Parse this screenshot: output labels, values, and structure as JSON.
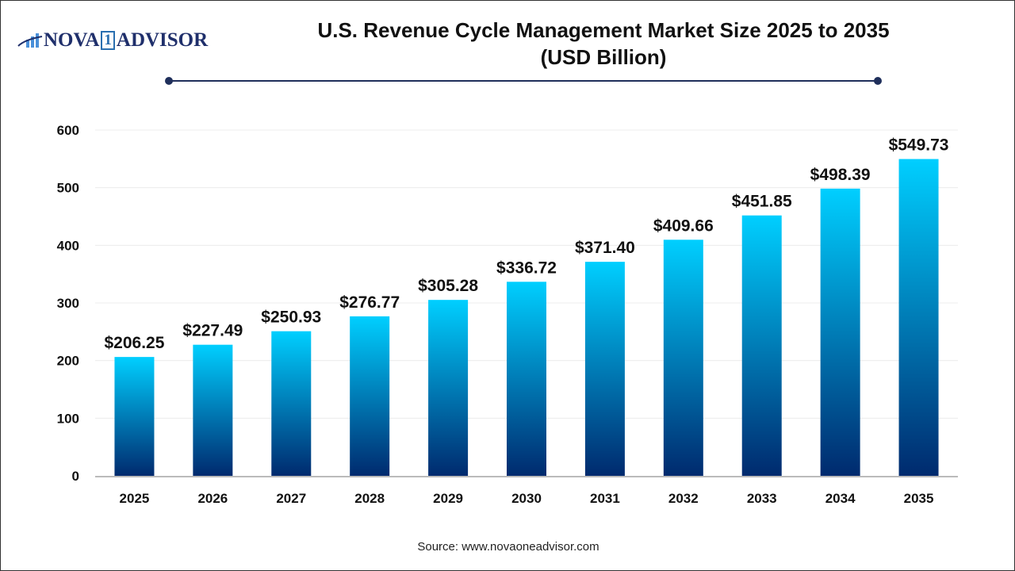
{
  "logo": {
    "text_left": "NOVA",
    "text_mid": "1",
    "text_right": "ADVISOR"
  },
  "source": "Source: www.novaoneadvisor.com",
  "chart_data": {
    "type": "bar",
    "title": "U.S. Revenue Cycle Management Market Size 2025 to 2035 (USD Billion)",
    "title_lines": [
      "U.S. Revenue Cycle Management Market Size 2025 to 2035",
      "(USD Billion)"
    ],
    "categories": [
      "2025",
      "2026",
      "2027",
      "2028",
      "2029",
      "2030",
      "2031",
      "2032",
      "2033",
      "2034",
      "2035"
    ],
    "values": [
      206.25,
      227.49,
      250.93,
      276.77,
      305.28,
      336.72,
      371.4,
      409.66,
      451.85,
      498.39,
      549.73
    ],
    "data_labels": [
      "$206.25",
      "$227.49",
      "$250.93",
      "$276.77",
      "$305.28",
      "$336.72",
      "$371.40",
      "$409.66",
      "$451.85",
      "$498.39",
      "$549.73"
    ],
    "yticks": [
      0,
      100,
      200,
      300,
      400,
      500,
      600
    ],
    "ylim": [
      0,
      600
    ],
    "xlabel": "",
    "ylabel": "",
    "grid": true,
    "colors": {
      "bar_top": "#00cfff",
      "bar_bottom": "#002a6e",
      "title_rule": "#1f2f5b"
    }
  }
}
